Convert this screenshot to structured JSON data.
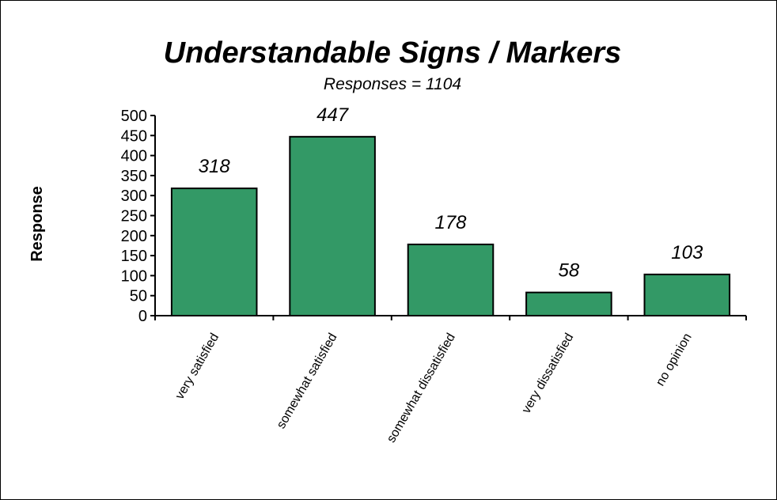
{
  "chart_data": {
    "type": "bar",
    "title": "Understandable Signs / Markers",
    "subtitle": "Responses = 1104",
    "ylabel": "Response",
    "xlabel": "",
    "categories": [
      "very satisfied",
      "somewhat satisfied",
      "somewhat dissatisfied",
      "very dissatisfied",
      "no opinion"
    ],
    "values": [
      318,
      447,
      178,
      58,
      103
    ],
    "data_labels": [
      "318",
      "447",
      "178",
      "58",
      "103"
    ],
    "ylim": [
      0,
      500
    ],
    "yticks": [
      0,
      50,
      100,
      150,
      200,
      250,
      300,
      350,
      400,
      450,
      500
    ],
    "grid": false,
    "legend": "none",
    "bar_color": "#339966",
    "bar_edge_color": "#000000"
  }
}
